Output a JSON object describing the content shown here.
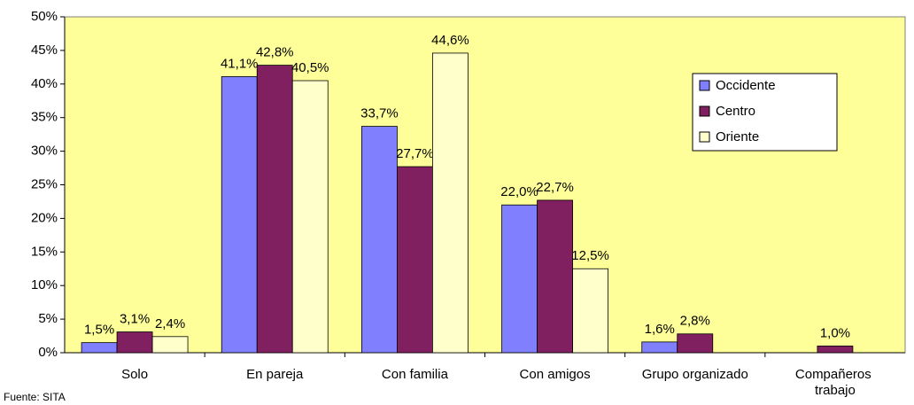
{
  "chart_data": {
    "type": "bar",
    "categories": [
      "Solo",
      "En pareja",
      "Con familia",
      "Con amigos",
      "Grupo organizado",
      "Compañeros trabajo"
    ],
    "series": [
      {
        "name": "Occidente",
        "color": "#8080ff",
        "values": [
          1.5,
          41.1,
          33.7,
          22.0,
          1.6,
          null
        ],
        "value_labels": [
          "1,5%",
          "41,1%",
          "33,7%",
          "22,0%",
          "1,6%",
          null
        ]
      },
      {
        "name": "Centro",
        "color": "#802060",
        "values": [
          3.1,
          42.8,
          27.7,
          22.7,
          2.8,
          1.0
        ],
        "value_labels": [
          "3,1%",
          "42,8%",
          "27,7%",
          "22,7%",
          "2,8%",
          "1,0%"
        ]
      },
      {
        "name": "Oriente",
        "color": "#ffffcc",
        "values": [
          2.4,
          40.5,
          44.6,
          12.5,
          null,
          null
        ],
        "value_labels": [
          "2,4%",
          "40,5%",
          "44,6%",
          "12,5%",
          null,
          null
        ]
      }
    ],
    "ylim": [
      0,
      50
    ],
    "yticks": [
      {
        "value": 0,
        "label": "0%"
      },
      {
        "value": 5,
        "label": "5%"
      },
      {
        "value": 10,
        "label": "10%"
      },
      {
        "value": 15,
        "label": "15%"
      },
      {
        "value": 20,
        "label": "20%"
      },
      {
        "value": 25,
        "label": "25%"
      },
      {
        "value": 30,
        "label": "30%"
      },
      {
        "value": 35,
        "label": "35%"
      },
      {
        "value": 40,
        "label": "40%"
      },
      {
        "value": 45,
        "label": "45%"
      },
      {
        "value": 50,
        "label": "50%"
      }
    ],
    "plot_background": "#ffff99",
    "legend": "right",
    "source": "Fuente: SITA"
  }
}
